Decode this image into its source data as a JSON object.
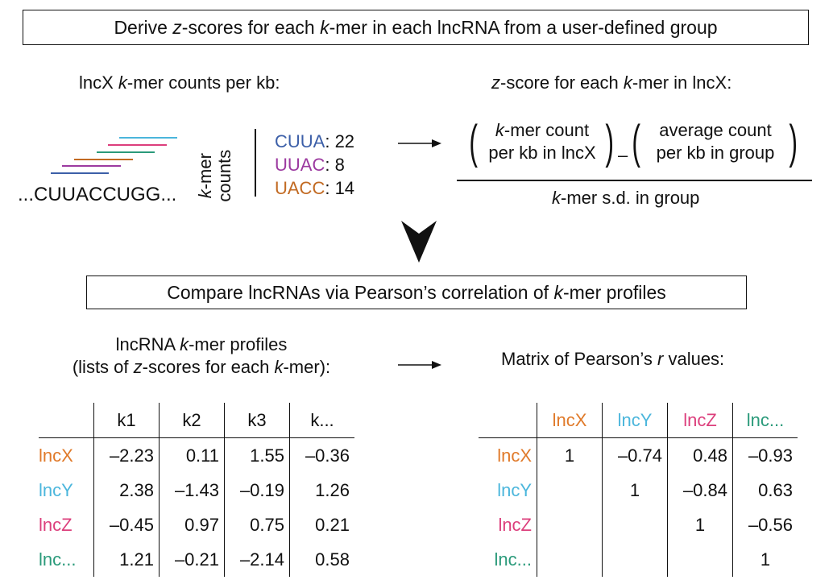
{
  "colors": {
    "lncX": "#e07a2a",
    "lncY": "#4bb6dc",
    "lncZ": "#dc3f7c",
    "lncMore": "#2a9a7a",
    "CUUA": "#3c5fa8",
    "UUAC": "#9c3aa0",
    "UACC": "#c26a22"
  },
  "step1": {
    "pre": "Derive ",
    "z": "z",
    "mid1": "-scores for each ",
    "k": "k",
    "post": "-mer in each lncRNA from a user-defined group"
  },
  "counts": {
    "title_pre": "lncX ",
    "title_k": "k",
    "title_post": "-mer counts per kb:",
    "sequence": "...CUUACCUGG...",
    "axis_k": "k",
    "axis_mer": "-mer",
    "axis_counts": "counts",
    "items": [
      {
        "kmer": "CUUA",
        "value": ": 22"
      },
      {
        "kmer": "UUAC",
        "value": ": 8"
      },
      {
        "kmer": "UACC",
        "value": ": 14"
      }
    ]
  },
  "zscore": {
    "title_z": "z",
    "title_mid": "-score for each ",
    "title_k": "k",
    "title_post": "-mer in lncX:",
    "num1_k": "k",
    "num1_line1": "-mer count",
    "num1_line2": "per kb in lncX",
    "minus": "–",
    "num2_line1": "average count",
    "num2_line2": "per kb in group",
    "den_k": "k",
    "den_post": "-mer s.d. in group"
  },
  "step2": {
    "pre": "Compare lncRNAs via Pearson’s correlation of ",
    "k": "k",
    "post": "-mer profiles"
  },
  "profiles": {
    "title1_pre": "lncRNA ",
    "title1_k": "k",
    "title1_post": "-mer profiles",
    "title2_pre": "(lists of ",
    "title2_z": "z",
    "title2_mid": "-scores for each ",
    "title2_k": "k",
    "title2_post": "-mer):",
    "columns": [
      "k1",
      "k2",
      "k3",
      "k..."
    ],
    "rows": [
      {
        "label": "lncX",
        "values": [
          "–2.23",
          "0.11",
          "1.55",
          "–0.36"
        ]
      },
      {
        "label": "lncY",
        "values": [
          "2.38",
          "–1.43",
          "–0.19",
          "1.26"
        ]
      },
      {
        "label": "lncZ",
        "values": [
          "–0.45",
          "0.97",
          "0.75",
          "0.21"
        ]
      },
      {
        "label": "lnc...",
        "values": [
          "1.21",
          "–0.21",
          "–2.14",
          "0.58"
        ]
      }
    ]
  },
  "matrix": {
    "title_pre": "Matrix of Pearson’s ",
    "title_r": "r",
    "title_post": " values:",
    "columns": [
      "lncX",
      "lncY",
      "lncZ",
      "lnc..."
    ],
    "rows": [
      {
        "label": "lncX",
        "values": [
          "1",
          "–0.74",
          "0.48",
          "–0.93"
        ]
      },
      {
        "label": "lncY",
        "values": [
          "",
          "1",
          "–0.84",
          "0.63"
        ]
      },
      {
        "label": "lncZ",
        "values": [
          "",
          "",
          "1",
          "–0.56"
        ]
      },
      {
        "label": "lnc...",
        "values": [
          "",
          "",
          "",
          "1"
        ]
      }
    ]
  }
}
